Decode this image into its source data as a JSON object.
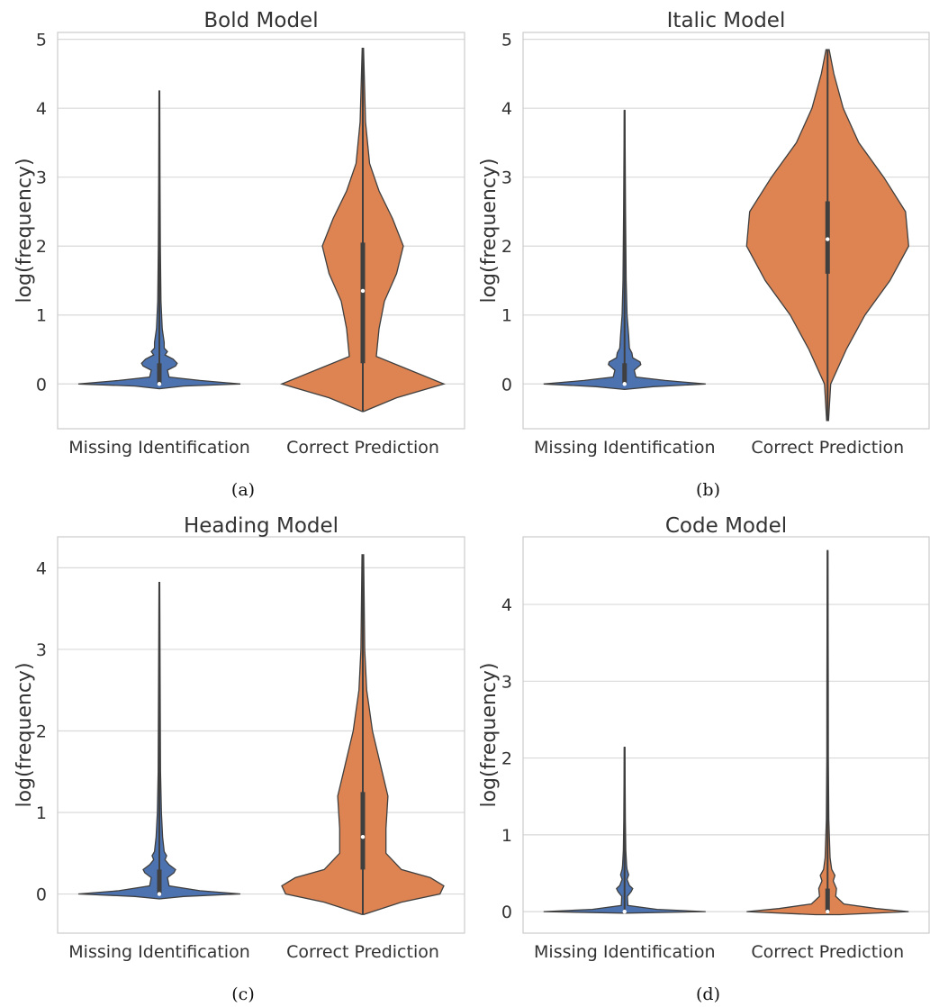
{
  "colors": {
    "missing": "#4c72b0",
    "correct": "#dd8452",
    "grid": "#d9d9d9",
    "text": "#333333"
  },
  "chart_data": [
    {
      "type": "violin",
      "title": "Bold Model",
      "ylabel": "log(frequency)",
      "categories": [
        "Missing Identification",
        "Correct Prediction"
      ],
      "ylim": [
        -0.65,
        5.1
      ],
      "yticks": [
        0,
        1,
        2,
        3,
        4,
        5
      ],
      "caption": "(a)",
      "grid": true,
      "violins": [
        {
          "category": "Missing Identification",
          "min": 0.0,
          "q1": 0.0,
          "median": 0.0,
          "q3": 0.3,
          "max": 4.25,
          "profile": [
            [
              -0.07,
              0
            ],
            [
              -0.03,
              0.3
            ],
            [
              0.0,
              1.0
            ],
            [
              0.05,
              0.5
            ],
            [
              0.1,
              0.12
            ],
            [
              0.2,
              0.1
            ],
            [
              0.26,
              0.2
            ],
            [
              0.3,
              0.22
            ],
            [
              0.36,
              0.17
            ],
            [
              0.42,
              0.07
            ],
            [
              0.47,
              0.1
            ],
            [
              0.52,
              0.06
            ],
            [
              0.6,
              0.06
            ],
            [
              0.8,
              0.035
            ],
            [
              1.2,
              0.02
            ],
            [
              2.0,
              0.012
            ],
            [
              3.0,
              0.008
            ],
            [
              4.25,
              0.004
            ]
          ]
        },
        {
          "category": "Correct Prediction",
          "min": -0.4,
          "q1": 0.3,
          "median": 1.35,
          "q3": 2.05,
          "max": 4.87,
          "profile": [
            [
              -0.4,
              0.005
            ],
            [
              -0.2,
              0.25
            ],
            [
              0.0,
              0.6
            ],
            [
              0.2,
              0.35
            ],
            [
              0.4,
              0.1
            ],
            [
              0.8,
              0.12
            ],
            [
              1.2,
              0.16
            ],
            [
              1.6,
              0.25
            ],
            [
              2.0,
              0.3
            ],
            [
              2.4,
              0.22
            ],
            [
              2.8,
              0.12
            ],
            [
              3.2,
              0.05
            ],
            [
              3.8,
              0.02
            ],
            [
              4.87,
              0.005
            ]
          ]
        }
      ]
    },
    {
      "type": "violin",
      "title": "Italic Model",
      "ylabel": "log(frequency)",
      "categories": [
        "Missing Identification",
        "Correct Prediction"
      ],
      "ylim": [
        -0.65,
        5.1
      ],
      "yticks": [
        0,
        1,
        2,
        3,
        4,
        5
      ],
      "caption": "(b)",
      "grid": true,
      "violins": [
        {
          "category": "Missing Identification",
          "min": 0.0,
          "q1": 0.0,
          "median": 0.0,
          "q3": 0.3,
          "max": 3.97,
          "profile": [
            [
              -0.08,
              0
            ],
            [
              -0.04,
              0.35
            ],
            [
              0.0,
              1.0
            ],
            [
              0.05,
              0.5
            ],
            [
              0.1,
              0.14
            ],
            [
              0.2,
              0.12
            ],
            [
              0.28,
              0.2
            ],
            [
              0.32,
              0.19
            ],
            [
              0.38,
              0.1
            ],
            [
              0.45,
              0.09
            ],
            [
              0.52,
              0.06
            ],
            [
              0.7,
              0.05
            ],
            [
              1.0,
              0.03
            ],
            [
              1.5,
              0.02
            ],
            [
              2.5,
              0.012
            ],
            [
              3.97,
              0.004
            ]
          ]
        },
        {
          "category": "Correct Prediction",
          "min": -0.53,
          "q1": 1.6,
          "median": 2.1,
          "q3": 2.65,
          "max": 4.85,
          "profile": [
            [
              -0.53,
              0.003
            ],
            [
              0.0,
              0.01
            ],
            [
              0.5,
              0.06
            ],
            [
              1.0,
              0.12
            ],
            [
              1.5,
              0.2
            ],
            [
              2.0,
              0.26
            ],
            [
              2.5,
              0.25
            ],
            [
              3.0,
              0.18
            ],
            [
              3.5,
              0.1
            ],
            [
              4.0,
              0.05
            ],
            [
              4.5,
              0.02
            ],
            [
              4.85,
              0.005
            ]
          ]
        }
      ]
    },
    {
      "type": "violin",
      "title": "Heading Model",
      "ylabel": "log(frequency)",
      "categories": [
        "Missing Identification",
        "Correct Prediction"
      ],
      "ylim": [
        -0.48,
        4.38
      ],
      "yticks": [
        0,
        1,
        2,
        3,
        4
      ],
      "caption": "(c)",
      "grid": true,
      "violins": [
        {
          "category": "Missing Identification",
          "min": 0.0,
          "q1": 0.0,
          "median": 0.0,
          "q3": 0.3,
          "max": 3.82,
          "profile": [
            [
              -0.06,
              0
            ],
            [
              -0.03,
              0.3
            ],
            [
              0.0,
              1.0
            ],
            [
              0.04,
              0.5
            ],
            [
              0.1,
              0.12
            ],
            [
              0.2,
              0.1
            ],
            [
              0.26,
              0.18
            ],
            [
              0.3,
              0.2
            ],
            [
              0.36,
              0.12
            ],
            [
              0.42,
              0.07
            ],
            [
              0.47,
              0.09
            ],
            [
              0.52,
              0.06
            ],
            [
              0.7,
              0.04
            ],
            [
              1.0,
              0.025
            ],
            [
              1.5,
              0.015
            ],
            [
              2.5,
              0.01
            ],
            [
              3.82,
              0.004
            ]
          ]
        },
        {
          "category": "Correct Prediction",
          "min": -0.25,
          "q1": 0.3,
          "median": 0.7,
          "q3": 1.25,
          "max": 4.16,
          "profile": [
            [
              -0.25,
              0.005
            ],
            [
              -0.1,
              0.2
            ],
            [
              0.0,
              0.4
            ],
            [
              0.1,
              0.42
            ],
            [
              0.2,
              0.35
            ],
            [
              0.3,
              0.2
            ],
            [
              0.5,
              0.12
            ],
            [
              0.8,
              0.12
            ],
            [
              1.2,
              0.13
            ],
            [
              1.5,
              0.1
            ],
            [
              2.0,
              0.05
            ],
            [
              2.5,
              0.02
            ],
            [
              3.0,
              0.01
            ],
            [
              4.16,
              0.004
            ]
          ]
        }
      ]
    },
    {
      "type": "violin",
      "title": "Code Model",
      "ylabel": "log(frequency)",
      "categories": [
        "Missing Identification",
        "Correct Prediction"
      ],
      "ylim": [
        -0.28,
        4.88
      ],
      "yticks": [
        0,
        1,
        2,
        3,
        4
      ],
      "caption": "(d)",
      "grid": true,
      "violins": [
        {
          "category": "Missing Identification",
          "min": 0.0,
          "q1": 0.0,
          "median": 0.0,
          "q3": 0.0,
          "max": 2.14,
          "profile": [
            [
              -0.02,
              0
            ],
            [
              0.0,
              1.0
            ],
            [
              0.03,
              0.4
            ],
            [
              0.08,
              0.04
            ],
            [
              0.2,
              0.035
            ],
            [
              0.26,
              0.08
            ],
            [
              0.3,
              0.1
            ],
            [
              0.34,
              0.06
            ],
            [
              0.42,
              0.03
            ],
            [
              0.48,
              0.05
            ],
            [
              0.55,
              0.03
            ],
            [
              0.6,
              0.025
            ],
            [
              0.8,
              0.015
            ],
            [
              1.2,
              0.01
            ],
            [
              2.14,
              0.004
            ]
          ]
        },
        {
          "category": "Correct Prediction",
          "min": -0.04,
          "q1": 0.0,
          "median": 0.0,
          "q3": 0.3,
          "max": 4.7,
          "profile": [
            [
              -0.04,
              0.15
            ],
            [
              0.0,
              1.0
            ],
            [
              0.04,
              0.6
            ],
            [
              0.1,
              0.2
            ],
            [
              0.2,
              0.1
            ],
            [
              0.3,
              0.11
            ],
            [
              0.4,
              0.07
            ],
            [
              0.47,
              0.09
            ],
            [
              0.55,
              0.05
            ],
            [
              0.7,
              0.03
            ],
            [
              1.2,
              0.015
            ],
            [
              2.0,
              0.01
            ],
            [
              3.0,
              0.008
            ],
            [
              4.7,
              0.004
            ]
          ]
        }
      ]
    }
  ]
}
